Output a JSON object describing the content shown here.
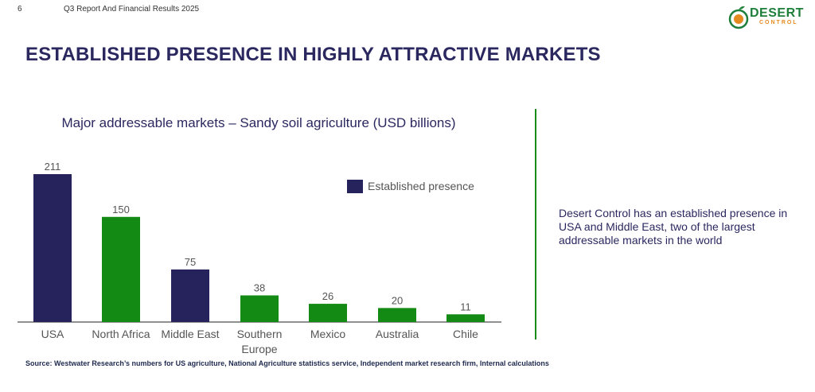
{
  "header": {
    "page_number": "6",
    "report_title": "Q3 Report And Financial Results 2025",
    "logo_line1": "DESERT",
    "logo_line2": "CONTROL"
  },
  "headline": "ESTABLISHED PRESENCE IN HIGHLY ATTRACTIVE MARKETS",
  "side_text": "Desert Control has an established presence in USA and Middle East, two of the largest addressable markets in the world",
  "source": "Source: Westwater Research’s numbers for US agriculture, National Agriculture statistics service, Independent market research firm, Internal calculations",
  "colors": {
    "established": "#25225c",
    "other": "#138a13",
    "title": "#2b2860",
    "divider": "#1a8c1a"
  },
  "chart_data": {
    "type": "bar",
    "title": "Major addressable markets – Sandy soil agriculture (USD billions)",
    "categories": [
      "USA",
      "North Africa",
      "Middle East",
      "Southern Europe",
      "Mexico",
      "Australia",
      "Chile"
    ],
    "values": [
      211,
      150,
      75,
      38,
      26,
      20,
      11
    ],
    "established_presence": [
      true,
      false,
      true,
      false,
      false,
      false,
      false
    ],
    "legend": [
      {
        "label": "Established presence",
        "color": "#25225c"
      }
    ],
    "legend_position": "top-right",
    "ylim": [
      0,
      211
    ],
    "grid": false,
    "xlabel": "",
    "ylabel": ""
  }
}
